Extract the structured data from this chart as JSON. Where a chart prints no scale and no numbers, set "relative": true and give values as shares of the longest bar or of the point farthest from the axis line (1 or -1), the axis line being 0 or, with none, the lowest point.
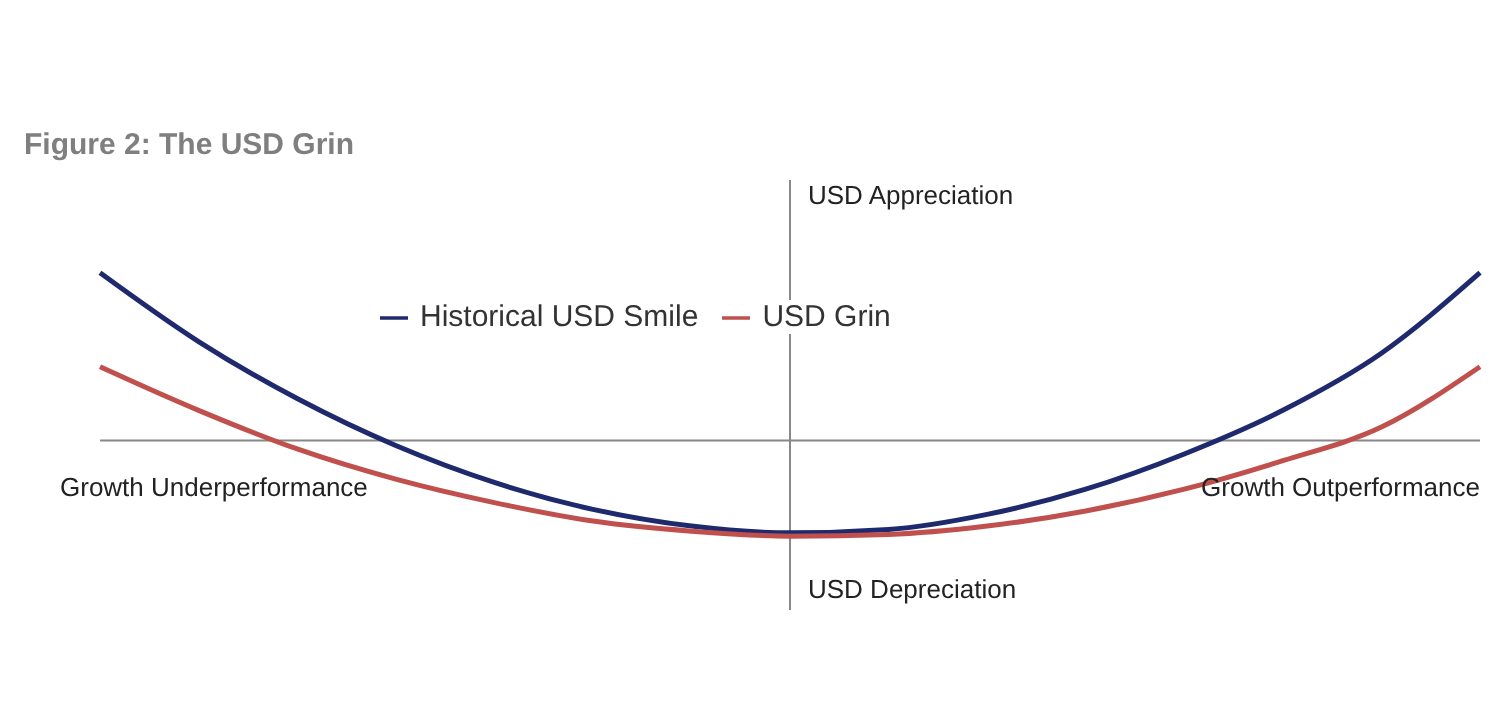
{
  "chart_data": {
    "type": "line",
    "title": "Figure 2: The USD Grin",
    "relative": true,
    "legend": "top",
    "categories": [
      null,
      null,
      null,
      null,
      null,
      null,
      null,
      null,
      null,
      null,
      null,
      null,
      null,
      null,
      null
    ],
    "series": [
      {
        "name": "Historical USD Smile",
        "color": "#1f2a6e",
        "values": [
          1.0,
          0.59,
          0.25,
          -0.03,
          -0.25,
          -0.41,
          -0.51,
          -0.55,
          -0.53,
          -0.44,
          -0.29,
          -0.08,
          0.18,
          0.52,
          1.0
        ]
      },
      {
        "name": "USD Grin",
        "color": "#c0504d",
        "values": [
          0.44,
          0.18,
          -0.05,
          -0.23,
          -0.37,
          -0.48,
          -0.54,
          -0.57,
          -0.56,
          -0.51,
          -0.42,
          -0.29,
          -0.12,
          0.08,
          0.44
        ]
      }
    ],
    "annotations": [
      "USD Appreciation",
      "USD Depreciation",
      "Growth Underperformance",
      "Growth Outperformance"
    ]
  }
}
